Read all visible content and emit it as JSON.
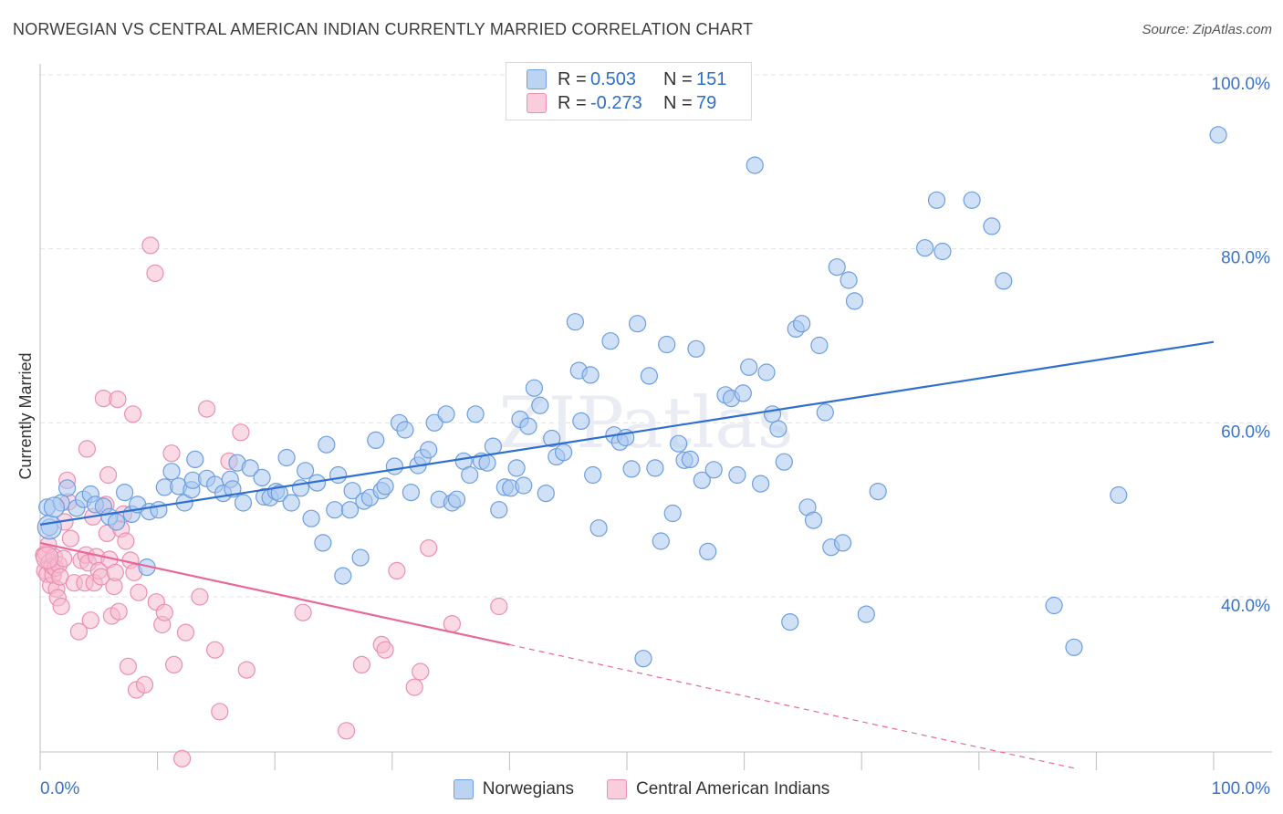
{
  "header": {
    "title": "NORWEGIAN VS CENTRAL AMERICAN INDIAN CURRENTLY MARRIED CORRELATION CHART",
    "source": "Source: ZipAtlas.com"
  },
  "legend": {
    "rows": [
      {
        "r_label": "R =",
        "r_value": "0.503",
        "n_label": "N =",
        "n_value": "151"
      },
      {
        "r_label": "R =",
        "r_value": "-0.273",
        "n_label": "N =",
        "n_value": "79"
      }
    ]
  },
  "colors": {
    "blue_fill": "#a9c8f0",
    "blue_stroke": "#6d9ee0",
    "blue_line": "#2f6fd0",
    "pink_fill": "#f6bcd0",
    "pink_stroke": "#ec8fb0",
    "pink_line": "#e8689a",
    "axis_text": "#3b73c8",
    "grid": "#e3e3e3"
  },
  "chart_data": {
    "type": "scatter",
    "title": "NORWEGIAN VS CENTRAL AMERICAN INDIAN CURRENTLY MARRIED CORRELATION CHART",
    "xlabel": "",
    "ylabel": "Currently Married",
    "xlim": [
      0,
      100
    ],
    "ylim": [
      20,
      100
    ],
    "x_tick_labels": [
      "0.0%",
      "100.0%"
    ],
    "y_tick_labels": [
      "40.0%",
      "60.0%",
      "80.0%",
      "100.0%"
    ],
    "y_ticks": [
      40,
      60,
      80,
      100
    ],
    "grid": "horizontal dashed",
    "watermark": "ZIPatlas",
    "legend_position": "top-center",
    "series": [
      {
        "name": "Norwegians",
        "color": "#a9c8f0",
        "trend": {
          "x": [
            0,
            100
          ],
          "y": [
            48.3,
            69.3
          ],
          "style": "solid"
        },
        "points": [
          [
            0.8,
            48
          ],
          [
            0.6,
            50.3
          ],
          [
            1.8,
            50.8
          ],
          [
            2.3,
            52.5
          ],
          [
            3.1,
            50.2
          ],
          [
            3.7,
            51.2
          ],
          [
            4.3,
            51.8
          ],
          [
            4.7,
            50.6
          ],
          [
            5.4,
            50.4
          ],
          [
            5.9,
            49.2
          ],
          [
            6.5,
            48.6
          ],
          [
            7.2,
            52
          ],
          [
            7.8,
            49.5
          ],
          [
            8.3,
            50.6
          ],
          [
            9.3,
            49.8
          ],
          [
            9.1,
            43.4
          ],
          [
            10.1,
            50
          ],
          [
            10.6,
            52.6
          ],
          [
            11.2,
            54.4
          ],
          [
            11.8,
            52.7
          ],
          [
            12.3,
            50.8
          ],
          [
            12.9,
            52.3
          ],
          [
            13.2,
            55.8
          ],
          [
            13.0,
            53.4
          ],
          [
            14.2,
            53.6
          ],
          [
            14.9,
            52.9
          ],
          [
            15.6,
            51.9
          ],
          [
            16.2,
            53.5
          ],
          [
            16.4,
            52.4
          ],
          [
            16.8,
            55.4
          ],
          [
            17.3,
            50.8
          ],
          [
            17.9,
            54.8
          ],
          [
            18.9,
            53.7
          ],
          [
            19.1,
            51.5
          ],
          [
            19.6,
            51.4
          ],
          [
            20.1,
            52.1
          ],
          [
            20.4,
            51.9
          ],
          [
            21.0,
            56
          ],
          [
            21.4,
            50.8
          ],
          [
            22.2,
            52.5
          ],
          [
            22.6,
            54.5
          ],
          [
            23.1,
            49
          ],
          [
            23.6,
            53.1
          ],
          [
            24.1,
            46.2
          ],
          [
            24.4,
            57.5
          ],
          [
            25.1,
            50
          ],
          [
            25.4,
            54
          ],
          [
            25.8,
            42.4
          ],
          [
            26.6,
            52.2
          ],
          [
            26.4,
            50
          ],
          [
            27.3,
            44.5
          ],
          [
            27.6,
            51
          ],
          [
            28.1,
            51.4
          ],
          [
            28.6,
            58
          ],
          [
            29.1,
            52.2
          ],
          [
            29.4,
            52.7
          ],
          [
            30.2,
            55
          ],
          [
            30.6,
            60
          ],
          [
            31.1,
            59.2
          ],
          [
            31.6,
            52
          ],
          [
            32.2,
            55.1
          ],
          [
            32.6,
            56
          ],
          [
            33.1,
            56.9
          ],
          [
            33.6,
            60
          ],
          [
            34.0,
            51.2
          ],
          [
            34.6,
            61
          ],
          [
            35.1,
            50.8
          ],
          [
            35.5,
            51.2
          ],
          [
            36.1,
            55.6
          ],
          [
            36.6,
            54
          ],
          [
            37.1,
            61
          ],
          [
            37.6,
            55.6
          ],
          [
            38.1,
            55.4
          ],
          [
            38.6,
            57.3
          ],
          [
            39.1,
            50
          ],
          [
            39.6,
            52.6
          ],
          [
            40.1,
            52.5
          ],
          [
            40.6,
            54.8
          ],
          [
            40.9,
            60.4
          ],
          [
            41.2,
            52.8
          ],
          [
            41.6,
            59.6
          ],
          [
            42.1,
            64
          ],
          [
            42.6,
            62
          ],
          [
            43.1,
            51.9
          ],
          [
            43.6,
            58.2
          ],
          [
            44.0,
            56.1
          ],
          [
            44.6,
            56.6
          ],
          [
            45.6,
            71.6
          ],
          [
            45.9,
            66
          ],
          [
            46.1,
            60.2
          ],
          [
            46.9,
            65.5
          ],
          [
            47.1,
            54
          ],
          [
            47.6,
            47.9
          ],
          [
            48.6,
            69.4
          ],
          [
            48.9,
            58.6
          ],
          [
            49.4,
            57.8
          ],
          [
            49.9,
            58.3
          ],
          [
            50.4,
            54.7
          ],
          [
            50.9,
            71.4
          ],
          [
            51.4,
            32.9
          ],
          [
            51.9,
            65.4
          ],
          [
            52.4,
            54.8
          ],
          [
            52.9,
            46.4
          ],
          [
            53.4,
            69
          ],
          [
            53.9,
            49.6
          ],
          [
            54.4,
            57.6
          ],
          [
            54.9,
            55.7
          ],
          [
            55.4,
            55.8
          ],
          [
            55.9,
            68.5
          ],
          [
            56.4,
            53.4
          ],
          [
            56.9,
            45.2
          ],
          [
            57.4,
            54.6
          ],
          [
            58.4,
            63.2
          ],
          [
            58.9,
            62.8
          ],
          [
            59.4,
            54
          ],
          [
            59.9,
            63.4
          ],
          [
            60.4,
            66.4
          ],
          [
            60.9,
            89.6
          ],
          [
            61.4,
            53
          ],
          [
            61.9,
            65.8
          ],
          [
            62.4,
            61
          ],
          [
            62.9,
            59.3
          ],
          [
            63.4,
            55.5
          ],
          [
            63.9,
            37.1
          ],
          [
            64.4,
            70.8
          ],
          [
            64.9,
            71.4
          ],
          [
            65.4,
            50.3
          ],
          [
            65.9,
            48.8
          ],
          [
            66.4,
            68.9
          ],
          [
            66.9,
            61.2
          ],
          [
            67.4,
            45.7
          ],
          [
            67.9,
            77.9
          ],
          [
            68.4,
            46.2
          ],
          [
            68.9,
            76.4
          ],
          [
            69.4,
            74
          ],
          [
            70.4,
            38
          ],
          [
            71.4,
            52.1
          ],
          [
            75.4,
            80.1
          ],
          [
            76.4,
            85.6
          ],
          [
            76.9,
            79.7
          ],
          [
            79.4,
            85.6
          ],
          [
            81.1,
            82.6
          ],
          [
            82.1,
            76.3
          ],
          [
            86.4,
            39
          ],
          [
            88.1,
            34.2
          ],
          [
            91.9,
            51.7
          ],
          [
            100.4,
            93.1
          ]
        ]
      },
      {
        "name": "Central American Indians",
        "color": "#f6bcd0",
        "trend": {
          "x": [
            0,
            40
          ],
          "y": [
            46.2,
            34.5
          ],
          "style": "solid"
        },
        "trend_extension": {
          "x": [
            40,
            100
          ],
          "y": [
            34.5,
            16.8
          ],
          "style": "dashed"
        },
        "points": [
          [
            0.3,
            44.8
          ],
          [
            0.4,
            43
          ],
          [
            0.5,
            45
          ],
          [
            0.6,
            42.6
          ],
          [
            0.7,
            46
          ],
          [
            0.8,
            44
          ],
          [
            0.9,
            41.3
          ],
          [
            1.0,
            43.5
          ],
          [
            1.1,
            42.5
          ],
          [
            1.2,
            44.6
          ],
          [
            1.3,
            43.3
          ],
          [
            1.4,
            40.9
          ],
          [
            1.5,
            39.9
          ],
          [
            1.6,
            43.7
          ],
          [
            1.7,
            42.3
          ],
          [
            1.8,
            38.9
          ],
          [
            2.0,
            44.4
          ],
          [
            2.1,
            48.6
          ],
          [
            2.3,
            53.4
          ],
          [
            2.4,
            50.9
          ],
          [
            2.6,
            46.7
          ],
          [
            2.9,
            41.6
          ],
          [
            3.3,
            36
          ],
          [
            3.5,
            44.2
          ],
          [
            3.8,
            41.6
          ],
          [
            3.9,
            44.8
          ],
          [
            4.0,
            57
          ],
          [
            4.1,
            43.9
          ],
          [
            4.3,
            37.3
          ],
          [
            4.5,
            49.2
          ],
          [
            4.6,
            41.6
          ],
          [
            4.8,
            44.6
          ],
          [
            5.0,
            43
          ],
          [
            5.2,
            42.3
          ],
          [
            5.4,
            62.8
          ],
          [
            5.6,
            50.6
          ],
          [
            5.7,
            47.3
          ],
          [
            5.8,
            54
          ],
          [
            5.9,
            44.3
          ],
          [
            6.1,
            37.8
          ],
          [
            6.3,
            41.2
          ],
          [
            6.4,
            42.8
          ],
          [
            6.6,
            62.7
          ],
          [
            6.7,
            38.3
          ],
          [
            6.9,
            47.8
          ],
          [
            7.1,
            49.5
          ],
          [
            7.3,
            46.4
          ],
          [
            7.5,
            32
          ],
          [
            7.7,
            44.2
          ],
          [
            7.9,
            61
          ],
          [
            8.0,
            42.8
          ],
          [
            8.2,
            29.3
          ],
          [
            8.4,
            40.5
          ],
          [
            8.9,
            29.9
          ],
          [
            9.4,
            80.4
          ],
          [
            9.8,
            77.2
          ],
          [
            9.9,
            39.4
          ],
          [
            10.4,
            36.8
          ],
          [
            10.6,
            38.2
          ],
          [
            11.2,
            56.5
          ],
          [
            11.4,
            32.2
          ],
          [
            12.1,
            21.4
          ],
          [
            12.4,
            35.9
          ],
          [
            13.6,
            40
          ],
          [
            14.2,
            61.6
          ],
          [
            14.9,
            33.9
          ],
          [
            15.3,
            26.8
          ],
          [
            16.1,
            55.6
          ],
          [
            17.1,
            58.9
          ],
          [
            17.6,
            31.6
          ],
          [
            22.4,
            38.2
          ],
          [
            26.1,
            24.6
          ],
          [
            27.4,
            32.2
          ],
          [
            29.1,
            34.5
          ],
          [
            29.4,
            33.9
          ],
          [
            30.4,
            43
          ],
          [
            31.9,
            29.6
          ],
          [
            32.4,
            31.4
          ],
          [
            33.1,
            45.6
          ],
          [
            35.1,
            36.9
          ],
          [
            39.1,
            38.9
          ]
        ]
      }
    ]
  },
  "bottom_legend": {
    "items": [
      {
        "label": "Norwegians"
      },
      {
        "label": "Central American Indians"
      }
    ]
  }
}
